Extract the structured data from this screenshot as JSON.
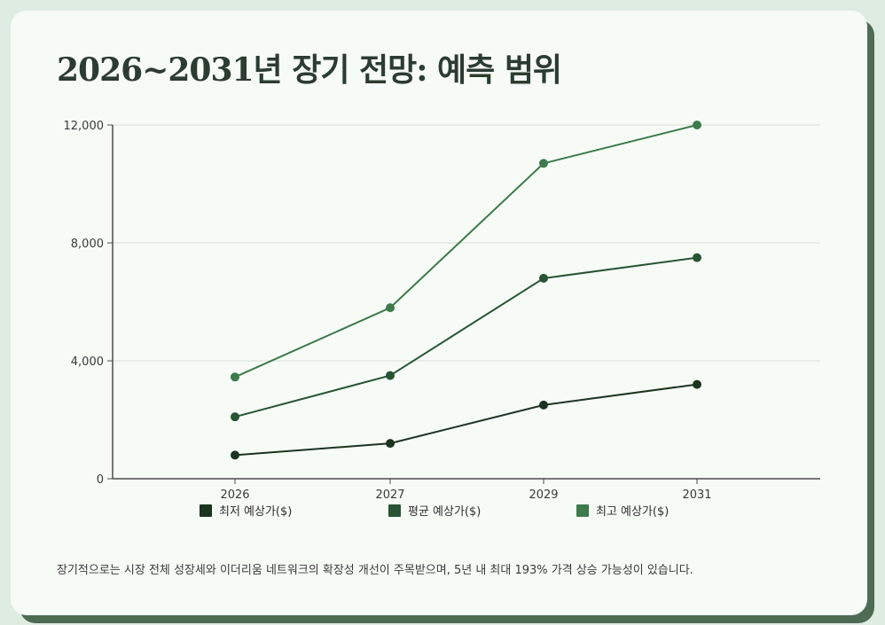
{
  "title": "2026~2031년 장기 전망: 예측 범위",
  "note": "장기적으로는 시장 전체 성장세와 이더리움 네트워크의 확장성 개선이 주목받으며, 5년 내 최대 193% 가격 상승 가능성이 있습니다.",
  "chart_data": {
    "type": "line",
    "title": "2026~2031년 장기 전망: 예측 범위",
    "xlabel": "",
    "ylabel": "",
    "categories": [
      "2026",
      "2027",
      "2029",
      "2031"
    ],
    "ylim": [
      0,
      12000
    ],
    "yticks": [
      0,
      4000,
      8000,
      12000
    ],
    "ytick_labels": [
      "0",
      "4,000",
      "8,000",
      "12,000"
    ],
    "grid": true,
    "legend_position": "bottom",
    "series": [
      {
        "name": "최저 예상가($)",
        "color": "#1c3320",
        "values": [
          800,
          1200,
          2500,
          3200
        ]
      },
      {
        "name": "평균 예상가($)",
        "color": "#275434",
        "values": [
          2100,
          3500,
          6800,
          7500
        ]
      },
      {
        "name": "최고 예상가($)",
        "color": "#3d7a4c",
        "values": [
          3450,
          5800,
          10700,
          12000
        ]
      }
    ]
  }
}
